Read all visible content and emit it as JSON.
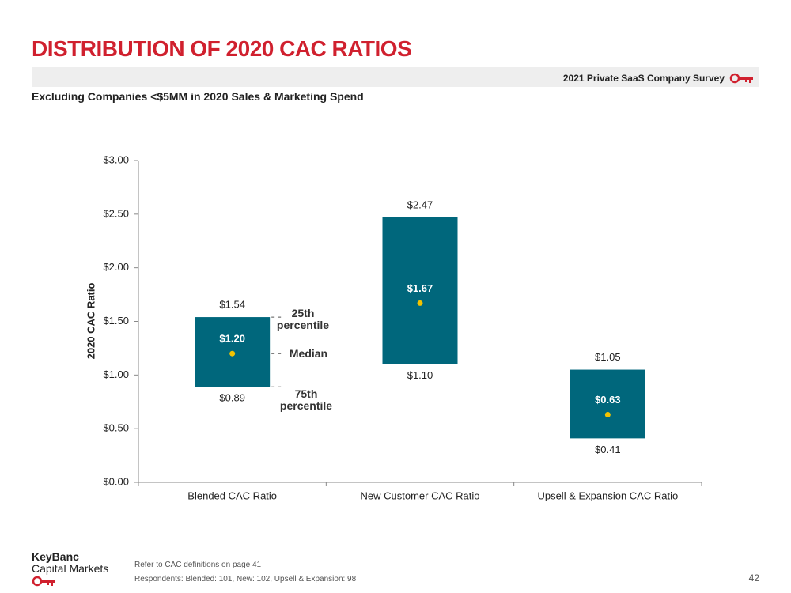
{
  "page": {
    "survey": "2021 Private SaaS Company Survey",
    "brand_line1": "KeyBanc",
    "brand_line2": "Capital Markets",
    "footnotes": [
      "Refer to CAC definitions on page 41",
      "Respondents: Blended: 101, New: 102, Upsell & Expansion: 98"
    ],
    "page_number": "42"
  },
  "chart_data": {
    "type": "floating-bar",
    "title": "DISTRIBUTION OF 2020 CAC RATIOS",
    "subtitle": "Excluding Companies <$5MM in 2020 Sales & Marketing Spend",
    "y_label": "2020 CAC Ratio",
    "categories": [
      "Blended CAC Ratio",
      "New Customer CAC Ratio",
      "Upsell & Expansion CAC Ratio"
    ],
    "series": [
      {
        "name": "75th percentile",
        "values": [
          0.89,
          1.1,
          0.41
        ],
        "value_labels": [
          "$0.89",
          "$1.10",
          "$0.41"
        ]
      },
      {
        "name": "25th percentile",
        "values": [
          1.54,
          2.47,
          1.05
        ],
        "value_labels": [
          "$1.54",
          "$2.47",
          "$1.05"
        ]
      },
      {
        "name": "Median",
        "values": [
          1.2,
          1.67,
          0.63
        ],
        "value_labels": [
          "$1.20",
          "$1.67",
          "$0.63"
        ],
        "color": "#f2c200"
      }
    ],
    "bar_color": "#00677c",
    "ylim": [
      0,
      3
    ],
    "yticks": [
      {
        "value": 0,
        "label": "$0.00"
      },
      {
        "value": 0.5,
        "label": "$0.50"
      },
      {
        "value": 1,
        "label": "$1.00"
      },
      {
        "value": 1.5,
        "label": "$1.50"
      },
      {
        "value": 2,
        "label": "$2.00"
      },
      {
        "value": 2.5,
        "label": "$2.50"
      },
      {
        "value": 3,
        "label": "$3.00"
      }
    ]
  }
}
